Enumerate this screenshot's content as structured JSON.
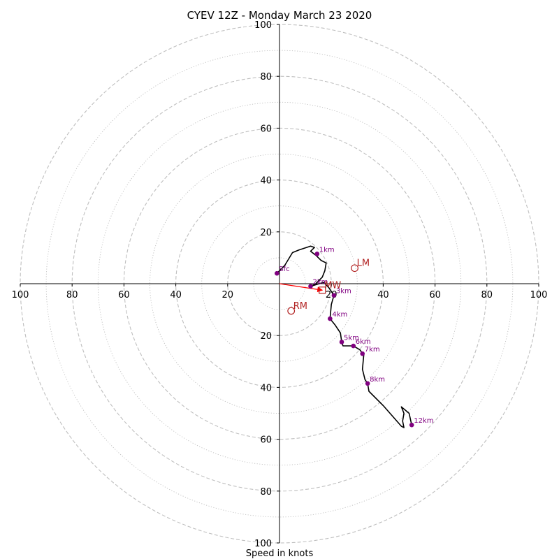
{
  "chart_data": {
    "type": "hodograph",
    "title": "CYEV 12Z - Monday March 23 2020",
    "xlabel": "Speed in knots",
    "rmax": 100,
    "ring_major": [
      20,
      40,
      60,
      80,
      100
    ],
    "ring_minor": [
      10,
      30,
      50,
      70,
      90
    ],
    "ticks": {
      "left": [
        "100",
        "80",
        "60",
        "40",
        "20"
      ],
      "right": [
        "20",
        "40",
        "60",
        "80",
        "100"
      ],
      "top": [
        "20",
        "40",
        "60",
        "80",
        "100"
      ],
      "bottom": [
        "20",
        "40",
        "60",
        "80",
        "100"
      ]
    },
    "hodograph_line": [
      [
        -1,
        4
      ],
      [
        2,
        7
      ],
      [
        5,
        12
      ],
      [
        7.5,
        13
      ],
      [
        12,
        14.5
      ],
      [
        13.5,
        14
      ],
      [
        12,
        12.5
      ],
      [
        14,
        11
      ],
      [
        16,
        9
      ],
      [
        18,
        8
      ],
      [
        17.5,
        5
      ],
      [
        16.5,
        2.5
      ],
      [
        14,
        0
      ],
      [
        12,
        -1
      ],
      [
        17,
        0.5
      ],
      [
        19,
        -1.5
      ],
      [
        21,
        -4.5
      ],
      [
        20,
        -8
      ],
      [
        19.5,
        -13.5
      ],
      [
        21.5,
        -16
      ],
      [
        23.5,
        -19
      ],
      [
        24,
        -22.5
      ],
      [
        24.5,
        -24
      ],
      [
        28.5,
        -24
      ],
      [
        31,
        -25.5
      ],
      [
        32.5,
        -27.5
      ],
      [
        32,
        -33
      ],
      [
        33,
        -37
      ],
      [
        34,
        -38.5
      ],
      [
        34.5,
        -41.5
      ],
      [
        40,
        -47
      ],
      [
        47,
        -55
      ],
      [
        48,
        -55.5
      ],
      [
        47.5,
        -53
      ],
      [
        48,
        -50
      ],
      [
        47,
        -47.5
      ],
      [
        50,
        -50
      ],
      [
        51,
        -54.5
      ]
    ],
    "height_points": [
      {
        "label": "Sfc",
        "u": -1,
        "v": 4
      },
      {
        "label": "1km",
        "u": 14.5,
        "v": 11.5
      },
      {
        "label": "2km",
        "u": 12,
        "v": -1
      },
      {
        "label": "3km",
        "u": 21,
        "v": -4.5
      },
      {
        "label": "4km",
        "u": 19.5,
        "v": -13.5
      },
      {
        "label": "5km",
        "u": 24,
        "v": -22.5
      },
      {
        "label": "6km",
        "u": 28.5,
        "v": -24
      },
      {
        "label": "7km",
        "u": 32,
        "v": -27
      },
      {
        "label": "8km",
        "u": 34,
        "v": -38.5
      },
      {
        "label": "12km",
        "u": 51,
        "v": -54.5
      }
    ],
    "motion_markers": [
      {
        "label": "LM",
        "u": 29,
        "v": 6,
        "shape": "circle"
      },
      {
        "label": "MW",
        "u": 16.5,
        "v": -2.5,
        "shape": "square"
      },
      {
        "label": "RM",
        "u": 4.5,
        "v": -10.5,
        "shape": "circle"
      }
    ],
    "shear_vector": {
      "u0": 0,
      "v0": 0,
      "u1": 16.5,
      "v1": -2.5
    },
    "colors": {
      "ring": "#bfbfbf",
      "axis": "#000000",
      "line": "#000000",
      "points": "#800080",
      "markers": "#b22222",
      "arrow": "#ff0000"
    }
  }
}
